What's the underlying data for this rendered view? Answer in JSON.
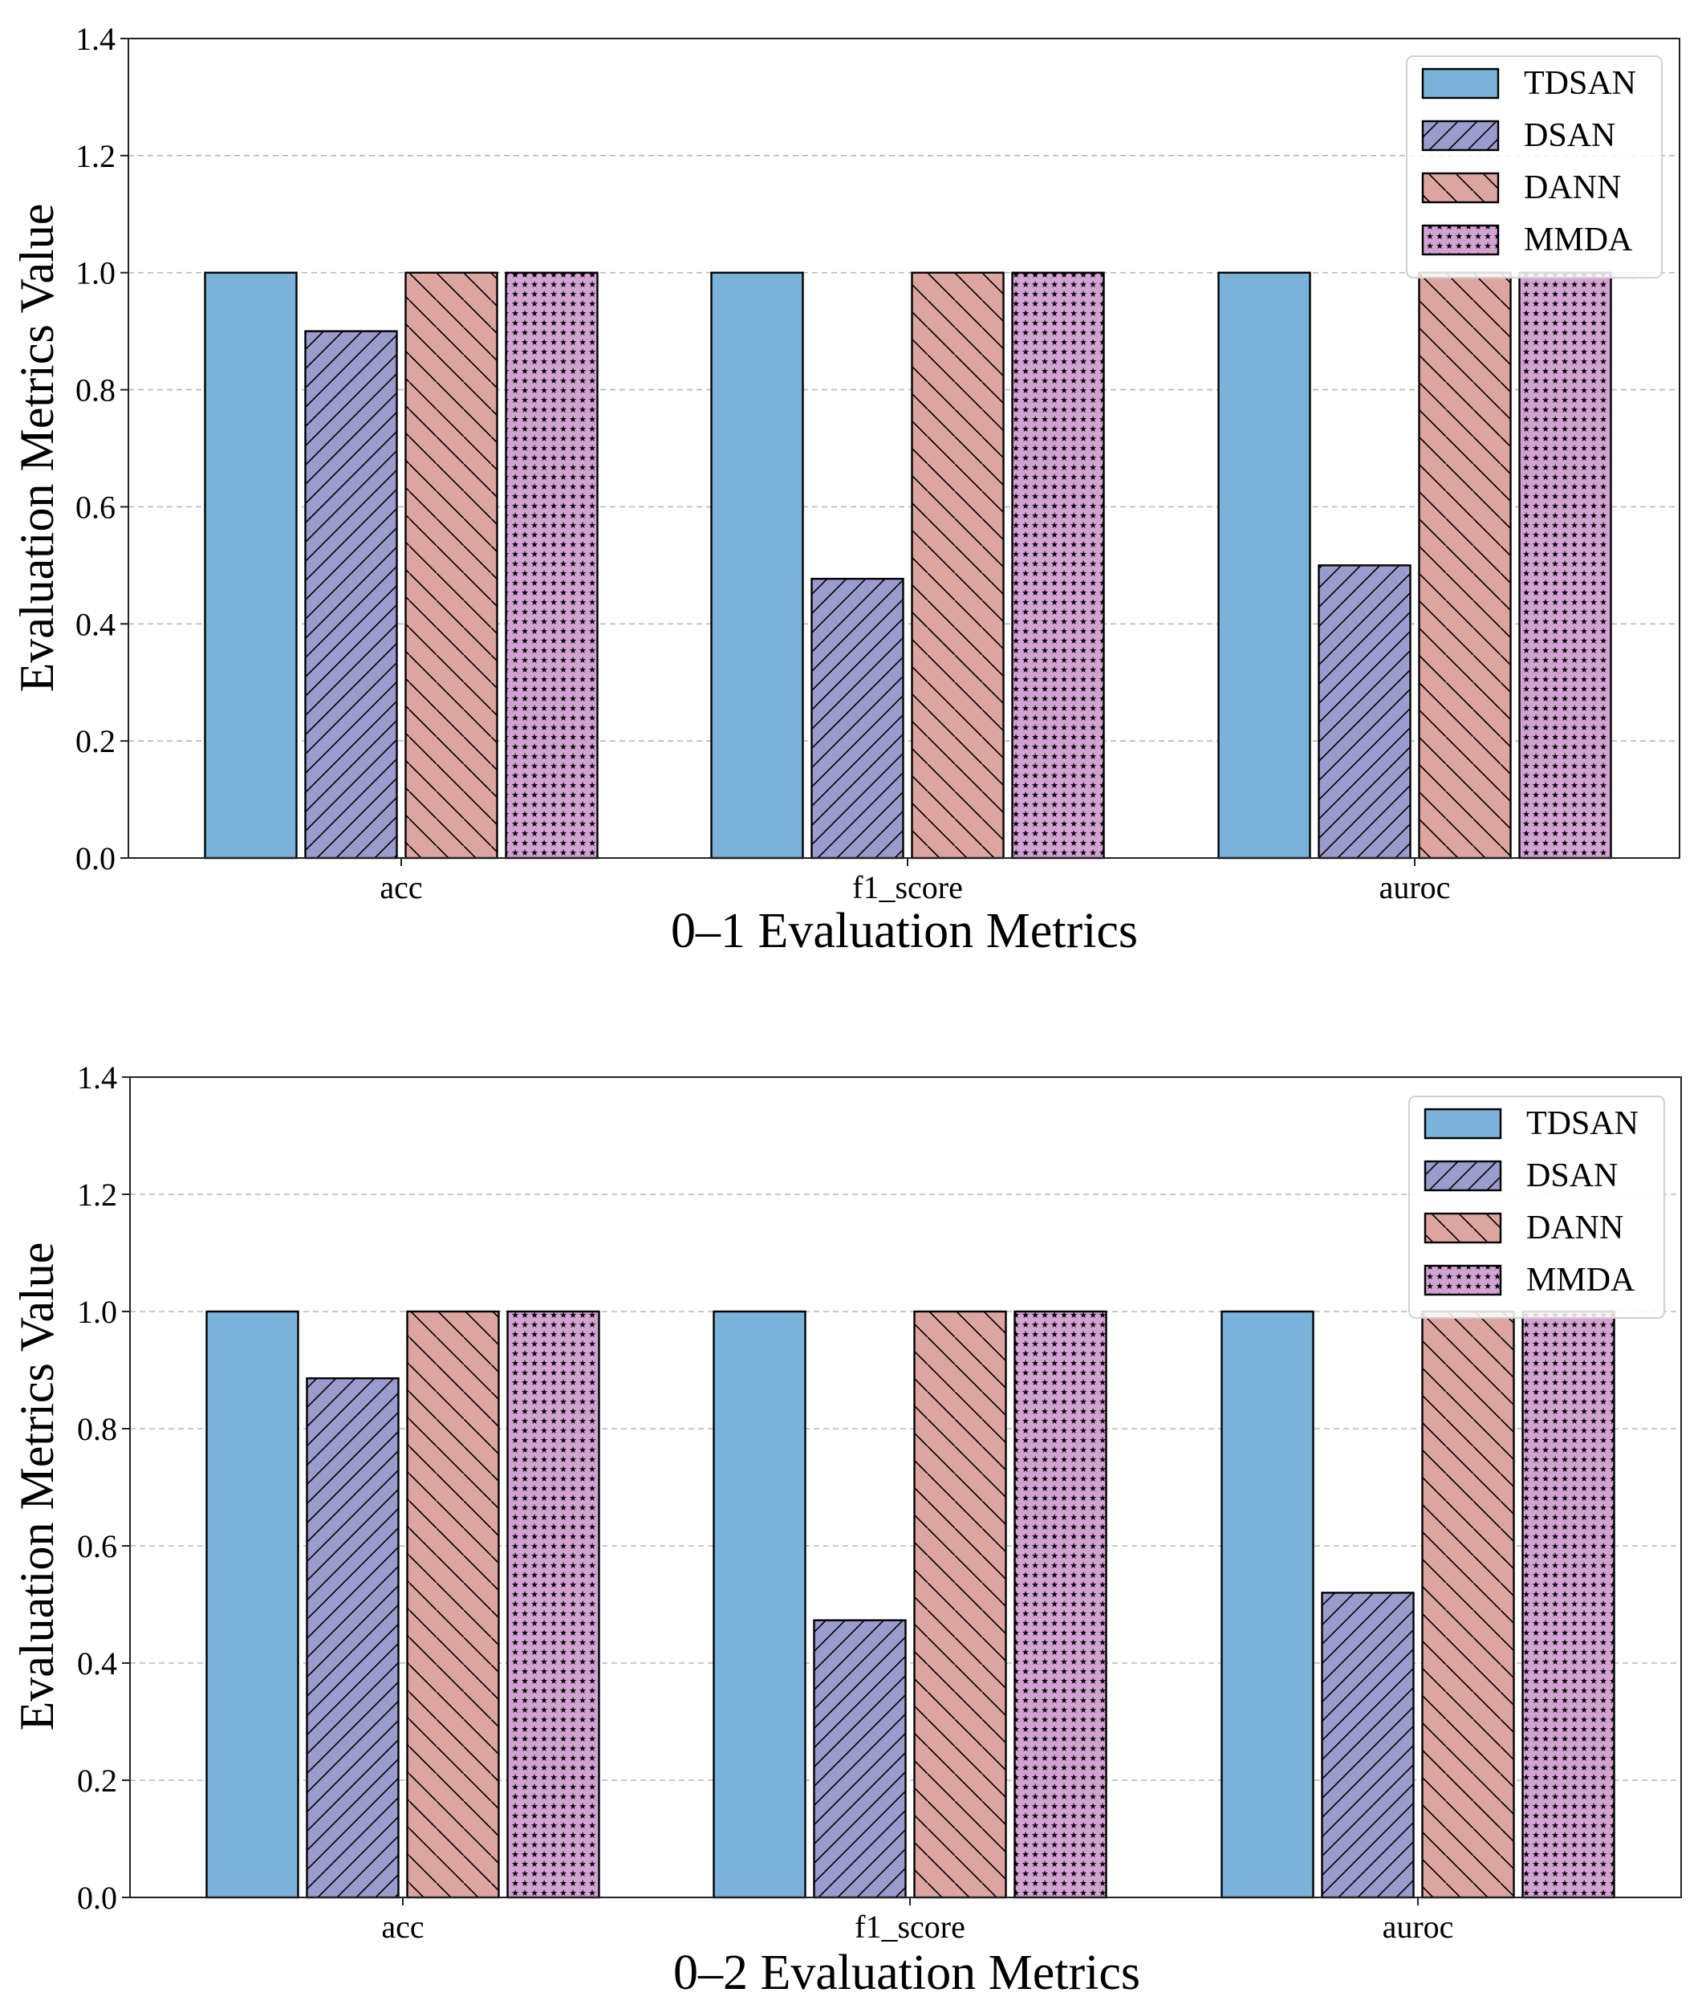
{
  "chart_data": [
    {
      "type": "bar",
      "title": "",
      "xlabel": "0–1 Evaluation Metrics",
      "ylabel": "Evaluation Metrics Value",
      "categories": [
        "acc",
        "f1_score",
        "auroc"
      ],
      "ylim": [
        0,
        1.4
      ],
      "yticks": [
        "0.0",
        "0.2",
        "0.4",
        "0.6",
        "0.8",
        "1.0",
        "1.2",
        "1.4"
      ],
      "grid": "horizontal dashed",
      "legend_position": "top-right",
      "series": [
        {
          "name": "TDSAN",
          "values": [
            1.0,
            1.0,
            1.0
          ]
        },
        {
          "name": "DSAN",
          "values": [
            0.9,
            0.477,
            0.5
          ]
        },
        {
          "name": "DANN",
          "values": [
            1.0,
            1.0,
            1.0
          ]
        },
        {
          "name": "MMDA",
          "values": [
            1.0,
            1.0,
            1.0
          ]
        }
      ]
    },
    {
      "type": "bar",
      "title": "",
      "xlabel": "0–2 Evaluation Metrics",
      "ylabel": "Evaluation Metrics Value",
      "categories": [
        "acc",
        "f1_score",
        "auroc"
      ],
      "ylim": [
        0,
        1.4
      ],
      "yticks": [
        "0.0",
        "0.2",
        "0.4",
        "0.6",
        "0.8",
        "1.0",
        "1.2",
        "1.4"
      ],
      "grid": "horizontal dashed",
      "legend_position": "top-right",
      "series": [
        {
          "name": "TDSAN",
          "values": [
            1.0,
            1.0,
            1.0
          ]
        },
        {
          "name": "DSAN",
          "values": [
            0.886,
            0.473,
            0.52
          ]
        },
        {
          "name": "DANN",
          "values": [
            1.0,
            1.0,
            1.0
          ]
        },
        {
          "name": "MMDA",
          "values": [
            1.0,
            1.0,
            1.0
          ]
        }
      ]
    }
  ],
  "style": {
    "series_colors": [
      "#7ab2d9",
      "#9a9ccd",
      "#dda5a0",
      "#d2a2d2"
    ],
    "series_patterns": [
      "solid",
      "forward-hatch",
      "back-hatch",
      "stars"
    ],
    "edge_color": "#000000",
    "grid_color": "#b8b8b8"
  }
}
